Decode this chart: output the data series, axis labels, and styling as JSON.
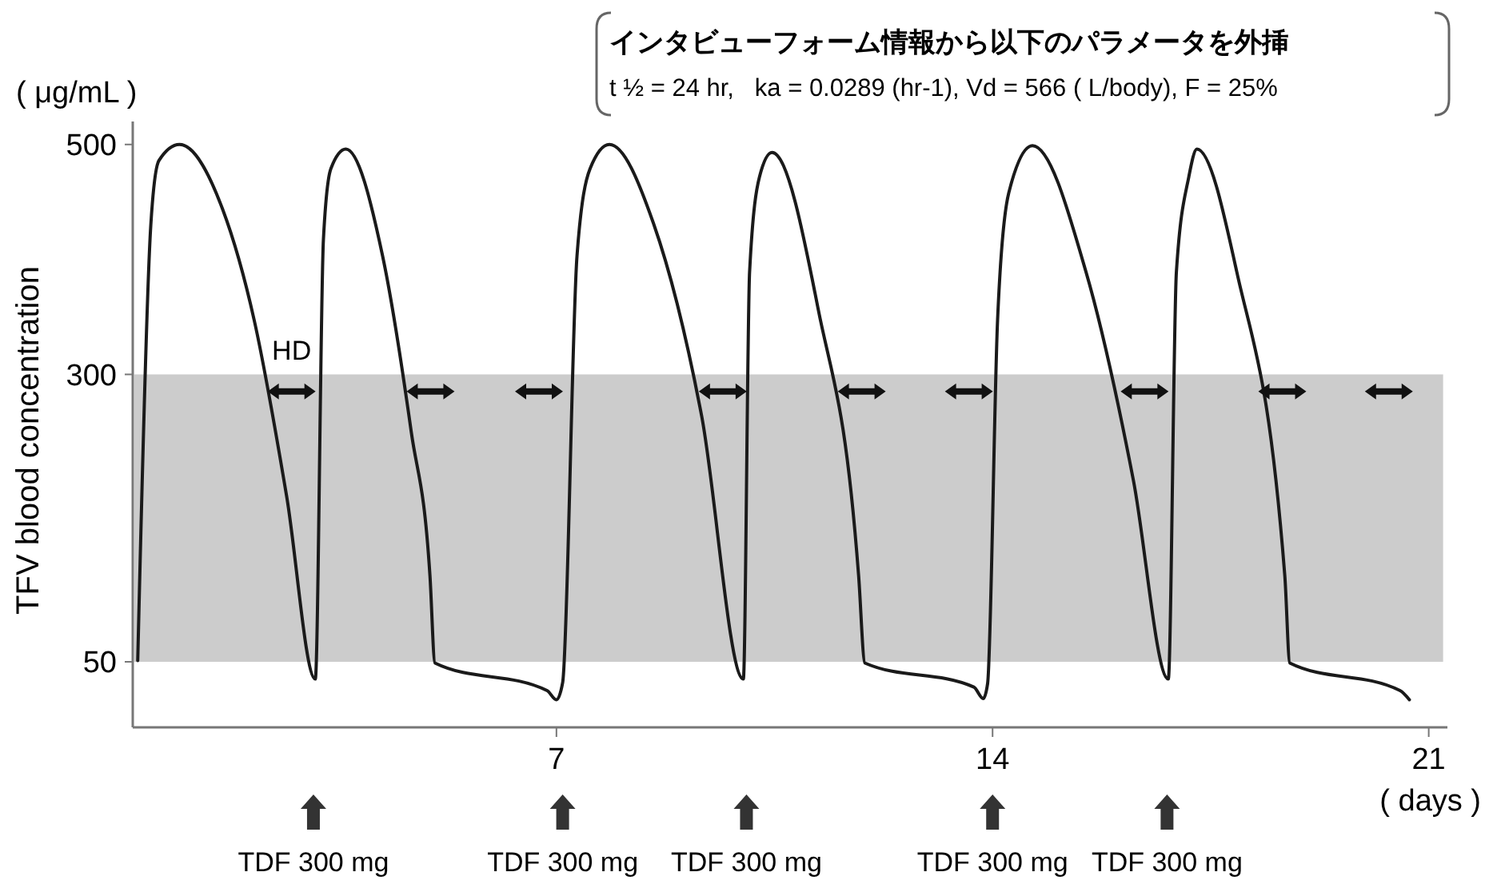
{
  "chart_data": {
    "type": "line",
    "title": "インタビューフォーム情報から以下のパラメータを外挿",
    "subtitle": "t ½ = 24 hr,   ka = 0.0289 (hr-1), Vd = 566 ( L/body), F = 25%",
    "ylabel": "TFV blood concentration",
    "x": [
      0.28,
      0.49,
      0.62,
      0.95,
      1.64,
      2.15,
      2.67,
      3.13,
      3.26,
      3.38,
      3.62,
      4.21,
      4.67,
      4.97,
      5.05,
      6.85,
      7.0,
      7.1,
      7.33,
      7.54,
      7.85,
      8.56,
      9.33,
      10.0,
      10.1,
      10.26,
      10.46,
      11.2,
      11.85,
      11.95,
      13.7,
      13.85,
      13.92,
      14.08,
      14.26,
      14.64,
      15.5,
      16.26,
      16.82,
      16.95,
      17.15,
      17.28,
      17.92,
      18.69,
      18.77,
      20.54,
      20.69
    ],
    "series": [
      {
        "color": "#1a1a1a",
        "values": [
          51,
          430,
          486,
          500,
          444,
          347,
          194,
          35,
          417,
          479,
          496,
          403,
          250,
          125,
          49,
          25,
          17,
          32,
          403,
          479,
          500,
          431,
          264,
          35,
          389,
          472,
          493,
          357,
          125,
          49,
          28,
          18,
          31,
          347,
          458,
          499,
          389,
          208,
          35,
          389,
          472,
          496,
          389,
          125,
          49,
          25,
          17
        ]
      }
    ],
    "xlim": [
      0.2,
      21.3
    ],
    "xticks": [
      7,
      14,
      21
    ],
    "ylim": [
      -7,
      520
    ],
    "yticks": [
      50,
      300,
      500
    ],
    "grid": false,
    "marker": "none",
    "line_style": "solid",
    "bands": [
      {
        "axis": "y",
        "from": 50,
        "to": 300,
        "color": "#cccccc"
      }
    ],
    "annotations": [
      "( μg/mL )",
      "( days )",
      "HD",
      "TDF 300 mg",
      "TDF 300 mg",
      "TDF 300 mg",
      "TDF 300 mg",
      "TDF 300 mg"
    ]
  }
}
